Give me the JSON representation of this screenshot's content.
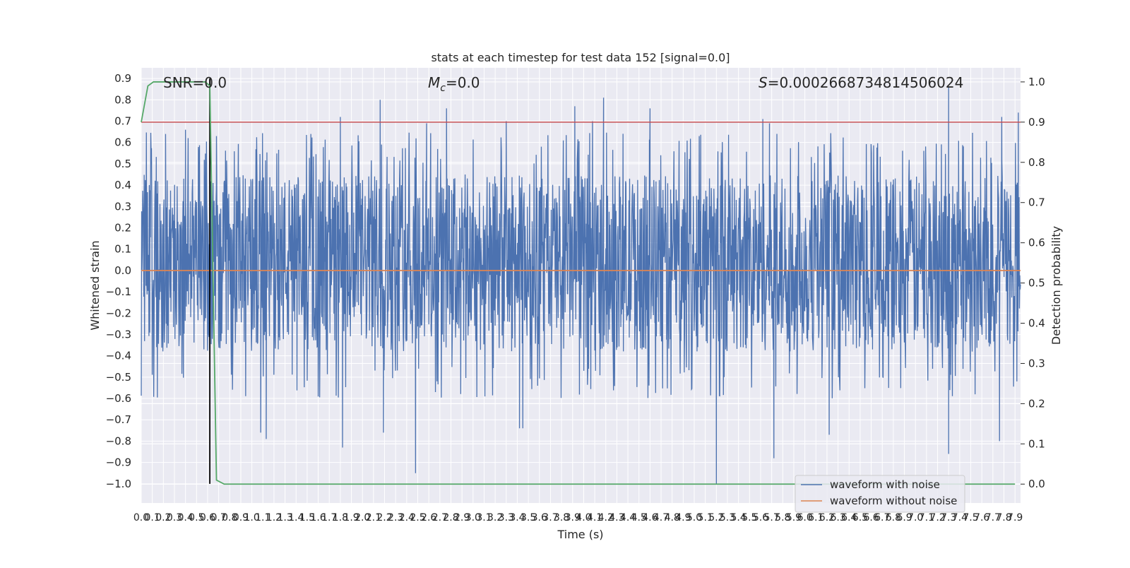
{
  "chart_data": {
    "type": "line",
    "title": "stats at each timestep for test data 152 [signal=0.0]",
    "xlabel": "Time (s)",
    "ylabel": "Whitened strain",
    "y2label": "Detection probability",
    "xlim": [
      0.0,
      7.95
    ],
    "ylim": [
      -1.09,
      0.95
    ],
    "y2lim": [
      -0.047,
      1.035
    ],
    "grid": true,
    "x_ticks": [
      "0.0",
      "0.1",
      "0.2",
      "0.3",
      "0.4",
      "0.5",
      "0.6",
      "0.7",
      "0.8",
      "0.9",
      "1.0",
      "1.1",
      "1.2",
      "1.3",
      "1.4",
      "1.5",
      "1.6",
      "1.7",
      "1.8",
      "1.9",
      "2.0",
      "2.1",
      "2.2",
      "2.3",
      "2.4",
      "2.5",
      "2.6",
      "2.7",
      "2.8",
      "2.9",
      "3.0",
      "3.1",
      "3.2",
      "3.3",
      "3.4",
      "3.5",
      "3.6",
      "3.7",
      "3.8",
      "3.9",
      "4.0",
      "4.1",
      "4.2",
      "4.3",
      "4.4",
      "4.5",
      "4.6",
      "4.7",
      "4.8",
      "4.9",
      "5.0",
      "5.1",
      "5.2",
      "5.3",
      "5.4",
      "5.5",
      "5.6",
      "5.7",
      "5.8",
      "5.9",
      "6.0",
      "6.1",
      "6.2",
      "6.3",
      "6.4",
      "6.5",
      "6.6",
      "6.7",
      "6.8",
      "6.9",
      "7.0",
      "7.1",
      "7.2",
      "7.3",
      "7.4",
      "7.5",
      "7.6",
      "7.7",
      "7.8",
      "7.9"
    ],
    "y_ticks": [
      "0.9",
      "0.8",
      "0.7",
      "0.6",
      "0.5",
      "0.4",
      "0.3",
      "0.2",
      "0.1",
      "0.0",
      "−0.1",
      "−0.2",
      "−0.3",
      "−0.4",
      "−0.5",
      "−0.6",
      "−0.7",
      "−0.8",
      "−0.9",
      "−1.0"
    ],
    "y2_ticks": [
      "1.0",
      "0.9",
      "0.8",
      "0.7",
      "0.6",
      "0.5",
      "0.4",
      "0.3",
      "0.2",
      "0.1",
      "0.0"
    ],
    "annotations": {
      "snr": "SNR=0.0",
      "mc_symbol": "M",
      "mc_sub": "c",
      "mc_value": "=0.0",
      "s_symbol": "S",
      "s_value": "=0.0002668734814506024"
    },
    "series": [
      {
        "name": "waveform with noise",
        "color": "#4c72b0",
        "kind": "noise",
        "x_range": [
          0.0,
          7.95
        ],
        "typical_range": [
          -0.38,
          0.45
        ],
        "peaks": [
          {
            "x": 0.22,
            "y": 0.64
          },
          {
            "x": 0.4,
            "y": 0.66
          },
          {
            "x": 0.68,
            "y": 0.63
          },
          {
            "x": 1.8,
            "y": 0.72
          },
          {
            "x": 2.16,
            "y": 0.8
          },
          {
            "x": 2.58,
            "y": 0.69
          },
          {
            "x": 2.76,
            "y": 0.76
          },
          {
            "x": 3.3,
            "y": 0.7
          },
          {
            "x": 3.92,
            "y": 0.77
          },
          {
            "x": 4.08,
            "y": 0.7
          },
          {
            "x": 4.18,
            "y": 0.81
          },
          {
            "x": 4.6,
            "y": 0.76
          },
          {
            "x": 5.62,
            "y": 0.71
          },
          {
            "x": 5.68,
            "y": 0.69
          },
          {
            "x": 7.3,
            "y": 0.86
          },
          {
            "x": 7.78,
            "y": 0.72
          },
          {
            "x": 7.93,
            "y": 0.74
          }
        ],
        "troughs": [
          {
            "x": 1.08,
            "y": -0.76
          },
          {
            "x": 1.13,
            "y": -0.79
          },
          {
            "x": 1.82,
            "y": -0.83
          },
          {
            "x": 2.19,
            "y": -0.76
          },
          {
            "x": 2.48,
            "y": -0.95
          },
          {
            "x": 3.42,
            "y": -0.74
          },
          {
            "x": 3.45,
            "y": -0.74
          },
          {
            "x": 5.2,
            "y": -1.0
          },
          {
            "x": 5.72,
            "y": -0.88
          },
          {
            "x": 6.22,
            "y": -0.77
          },
          {
            "x": 7.3,
            "y": -0.86
          },
          {
            "x": 7.76,
            "y": -0.8
          }
        ]
      },
      {
        "name": "waveform without noise",
        "color": "#dd8452",
        "x": [
          0.0,
          7.95
        ],
        "y": [
          0.0,
          0.0
        ]
      },
      {
        "name": "detection probability",
        "color": "#55a868",
        "axis": "right",
        "x": [
          0.0,
          0.06,
          0.11,
          0.2,
          0.4,
          0.58,
          0.62,
          0.68,
          0.75,
          0.8,
          7.9
        ],
        "y": [
          0.9,
          0.99,
          1.0,
          1.0,
          1.0,
          1.0,
          0.99,
          0.01,
          0.0,
          0.0,
          0.0
        ]
      }
    ],
    "reference_lines": [
      {
        "kind": "horizontal",
        "axis": "right",
        "value": 0.9,
        "color": "#c44e52"
      },
      {
        "kind": "vertical",
        "x": 0.62,
        "y_from": -1.0,
        "y_to": 0.9,
        "color": "#000000"
      }
    ],
    "legend": {
      "position": "lower-right",
      "entries": [
        {
          "label": "waveform with noise",
          "color": "#4c72b0"
        },
        {
          "label": "waveform without noise",
          "color": "#dd8452"
        }
      ]
    }
  }
}
